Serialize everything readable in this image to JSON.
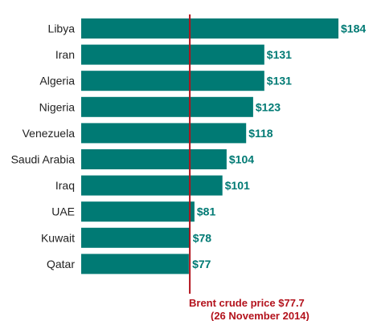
{
  "chart_data": {
    "type": "bar",
    "orientation": "horizontal",
    "categories": [
      "Libya",
      "Iran",
      "Algeria",
      "Nigeria",
      "Venezuela",
      "Saudi Arabia",
      "Iraq",
      "UAE",
      "Kuwait",
      "Qatar"
    ],
    "values": [
      184,
      131,
      131,
      123,
      118,
      104,
      101,
      81,
      78,
      77
    ],
    "value_labels": [
      "$184",
      "$131",
      "$131",
      "$123",
      "$118",
      "$104",
      "$101",
      "$81",
      "$78",
      "$77"
    ],
    "title": "",
    "xlabel": "",
    "ylabel": "",
    "xlim": [
      0,
      184
    ],
    "grid": false,
    "reference_line": {
      "value": 77.7,
      "label_line1": "Brent crude price $77.7",
      "label_line2": "(26 November 2014)"
    },
    "colors": {
      "bar": "#007a74",
      "value_label": "#007a74",
      "reference_line": "#b3121c",
      "reference_text": "#b3121c"
    }
  }
}
